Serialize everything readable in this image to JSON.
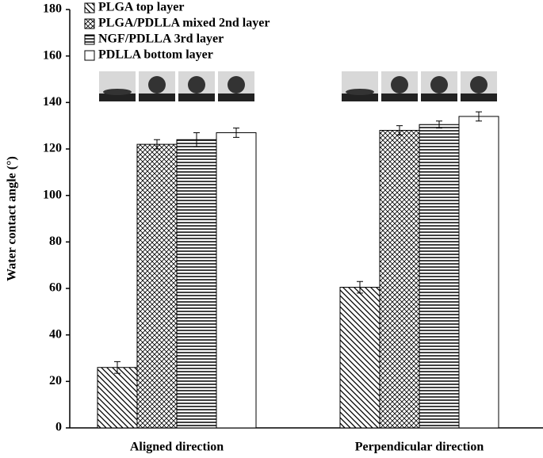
{
  "chart_data": {
    "type": "bar",
    "y_label": "Water contact angle (°)",
    "categories": [
      "Aligned direction",
      "Perpendicular direction"
    ],
    "series": [
      {
        "name": "PLGA top layer",
        "color": "#000000",
        "pattern": "diagonal",
        "values": [
          26,
          60.5
        ],
        "errors": [
          2.5,
          2.5
        ]
      },
      {
        "name": "PLGA/PDLLA mixed 2nd layer",
        "color": "#000000",
        "pattern": "crosshatch",
        "values": [
          122,
          128
        ],
        "errors": [
          2,
          2
        ]
      },
      {
        "name": "NGF/PDLLA 3rd layer",
        "color": "#000000",
        "pattern": "horizontal",
        "values": [
          124,
          130.5
        ],
        "errors": [
          3,
          1.5
        ]
      },
      {
        "name": "PDLLA bottom layer",
        "color": "#000000",
        "pattern": "none",
        "values": [
          127,
          134
        ],
        "errors": [
          2,
          2
        ]
      }
    ],
    "ylim": [
      0,
      180
    ],
    "yticks": [
      0,
      20,
      40,
      60,
      80,
      100,
      120,
      140,
      160,
      180
    ],
    "grid": false
  }
}
